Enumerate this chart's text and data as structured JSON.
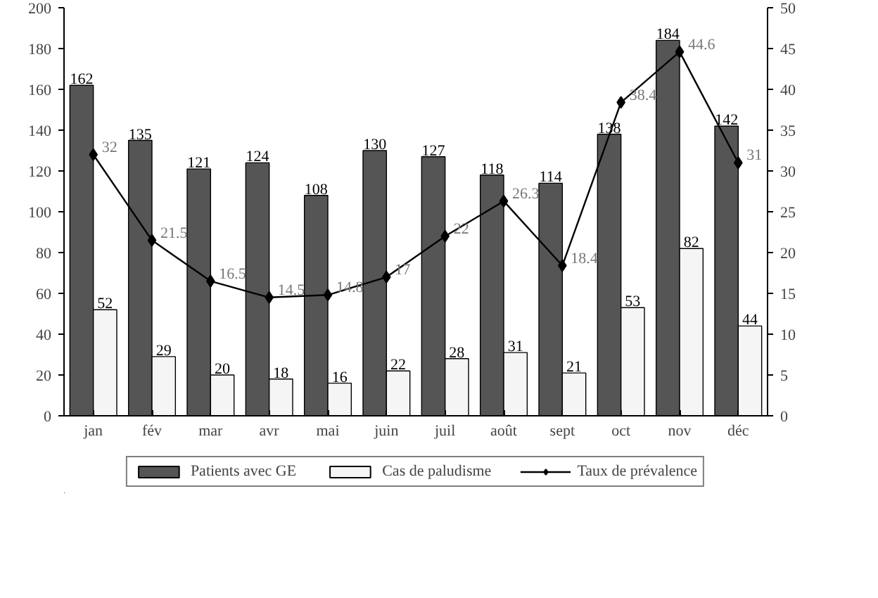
{
  "chart_data": {
    "type": "bar",
    "categories": [
      "jan",
      "fév",
      "mar",
      "avr",
      "mai",
      "juin",
      "juil",
      "août",
      "sept",
      "oct",
      "nov",
      "déc"
    ],
    "series": [
      {
        "name": "Patients avec GE",
        "color": "#555555",
        "values": [
          162,
          135,
          121,
          124,
          108,
          130,
          127,
          118,
          114,
          138,
          184,
          142
        ]
      },
      {
        "name": "Cas de paludisme",
        "color": "#f5f5f5",
        "values": [
          52,
          29,
          20,
          18,
          16,
          22,
          28,
          31,
          21,
          53,
          82,
          44
        ]
      },
      {
        "name": "Taux de prévalence",
        "type": "line",
        "axis": "y2",
        "color": "#000000",
        "marker": "diamond",
        "values": [
          32,
          21.5,
          16.5,
          14.5,
          14.8,
          17,
          22,
          26.3,
          18.4,
          38.4,
          44.6,
          31
        ]
      }
    ],
    "ylim": [
      0,
      200
    ],
    "yticks": [
      0,
      20,
      40,
      60,
      80,
      100,
      120,
      140,
      160,
      180,
      200
    ],
    "y2lim": [
      0,
      50
    ],
    "y2ticks": [
      0,
      5,
      10,
      15,
      20,
      25,
      30,
      35,
      40,
      45,
      50
    ],
    "data_labels": true,
    "grid": false,
    "legend": "bottom"
  }
}
